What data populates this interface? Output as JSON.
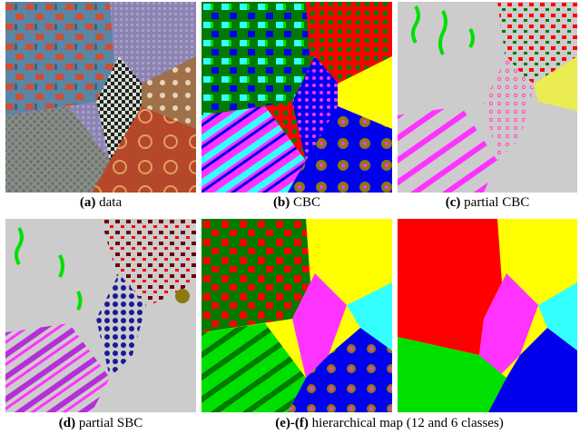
{
  "panels": [
    {
      "id": "a",
      "letter": "(a)",
      "text": " data"
    },
    {
      "id": "b",
      "letter": "(b)",
      "text": " CBC"
    },
    {
      "id": "c",
      "letter": "(c)",
      "text": " partial CBC"
    },
    {
      "id": "d",
      "letter": "(d)",
      "text": " partial SBC"
    },
    {
      "id": "ef",
      "letter": "(e)-(f)",
      "text": " hierarchical map (12 and 6 classes)"
    }
  ],
  "colors": {
    "red": "#ff0000",
    "green": "#00e000",
    "dark_green": "#007a00",
    "yellow": "#ffff00",
    "magenta": "#ff33ff",
    "cyan": "#33ffff",
    "blue": "#0000ee",
    "gray": "#cccccc",
    "purple": "#b52fd6",
    "olive": "#8a7a10",
    "maroon": "#6b0000",
    "navy": "#1a1a99"
  }
}
